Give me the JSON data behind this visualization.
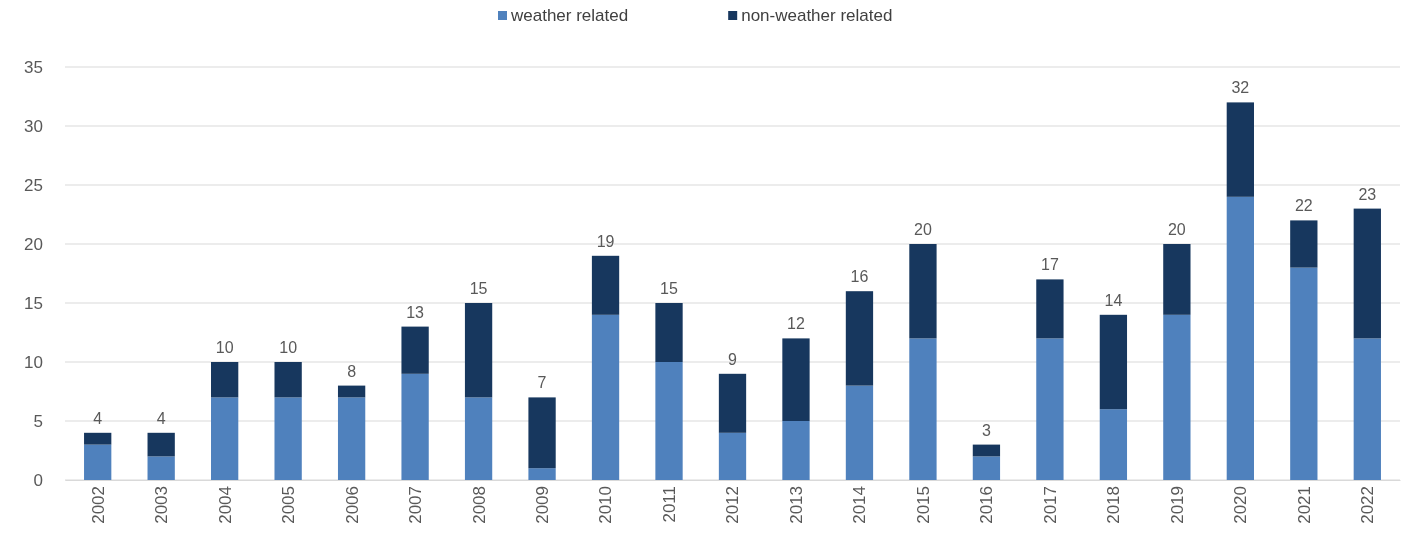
{
  "chart_data": {
    "type": "bar",
    "stacked": true,
    "categories": [
      "2002",
      "2003",
      "2004",
      "2005",
      "2006",
      "2007",
      "2008",
      "2009",
      "2010",
      "2011",
      "2012",
      "2013",
      "2014",
      "2015",
      "2016",
      "2017",
      "2018",
      "2019",
      "2020",
      "2021",
      "2022"
    ],
    "series": [
      {
        "name": "weather related",
        "color": "#4f81bd",
        "values": [
          3,
          2,
          7,
          7,
          7,
          9,
          7,
          1,
          14,
          10,
          4,
          5,
          8,
          12,
          2,
          12,
          6,
          14,
          24,
          18,
          12
        ]
      },
      {
        "name": "non-weather related",
        "color": "#17375e",
        "values": [
          1,
          2,
          3,
          3,
          1,
          4,
          8,
          6,
          5,
          5,
          5,
          7,
          8,
          8,
          1,
          5,
          8,
          6,
          8,
          4,
          11
        ]
      }
    ],
    "totals": [
      "4",
      "4",
      "10",
      "10",
      "8",
      "13",
      "15",
      "7",
      "19",
      "15",
      "9",
      "12",
      "16",
      "20",
      "3",
      "17",
      "14",
      "20",
      "32",
      "22",
      "23"
    ],
    "ylim": [
      0,
      35
    ],
    "yticks": [
      0,
      5,
      10,
      15,
      20,
      25,
      30,
      35
    ],
    "grid": "y",
    "legend": "top"
  }
}
